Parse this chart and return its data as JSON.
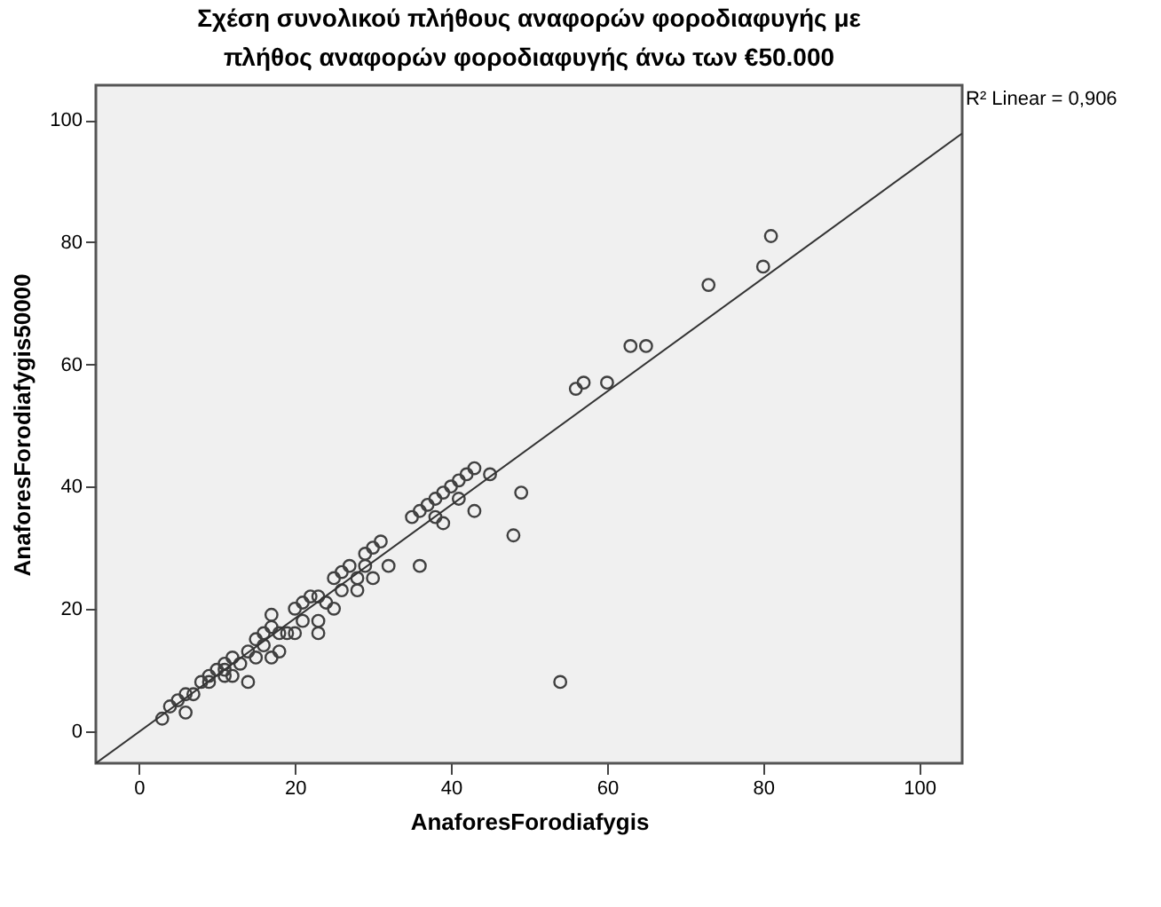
{
  "chart_data": {
    "type": "scatter",
    "title": [
      "Σχέση συνολικού πλήθους αναφορών φοροδιαφυγής με",
      "πλήθος αναφορών φοροδιαφυγής άνω των €50.000"
    ],
    "xlabel": "AnaforesForodiafygis",
    "ylabel": "AnaforesForodiafygis50000",
    "xlim": [
      -5.5,
      105.5
    ],
    "ylim": [
      -5.3,
      105.7
    ],
    "xticks": [
      0,
      20,
      40,
      60,
      80,
      100
    ],
    "yticks": [
      0,
      20,
      40,
      60,
      80,
      100
    ],
    "grid": false,
    "marker": "circle",
    "series": [
      {
        "color": "#404040",
        "x": [
          3,
          4,
          5,
          6,
          6,
          7,
          8,
          9,
          10,
          9,
          11,
          11,
          12,
          11,
          12,
          13,
          14,
          14,
          15,
          15,
          16,
          16,
          17,
          17,
          17,
          18,
          18,
          19,
          20,
          20,
          21,
          21,
          22,
          23,
          23,
          23,
          24,
          25,
          25,
          26,
          26,
          27,
          28,
          28,
          29,
          29,
          30,
          30,
          31,
          32,
          35,
          36,
          37,
          38,
          39,
          40,
          41,
          42,
          43,
          45,
          41,
          38,
          39,
          43,
          49,
          48,
          36,
          54,
          56,
          57,
          60,
          63,
          65,
          73,
          80,
          81
        ],
        "values": [
          2,
          4,
          5,
          6,
          3,
          6,
          8,
          9,
          10,
          8,
          11,
          10,
          9,
          9,
          12,
          11,
          8,
          13,
          15,
          12,
          16,
          14,
          19,
          12,
          17,
          13,
          16,
          16,
          16,
          20,
          21,
          18,
          22,
          22,
          18,
          16,
          21,
          25,
          20,
          23,
          26,
          27,
          23,
          25,
          29,
          27,
          30,
          25,
          31,
          27,
          35,
          36,
          37,
          38,
          39,
          40,
          41,
          42,
          43,
          42,
          38,
          35,
          34,
          36,
          39,
          32,
          27,
          8,
          56,
          57,
          57,
          63,
          63,
          73,
          76,
          81
        ]
      },
      {
        "type": "line",
        "marker": "none",
        "color": "#333333",
        "x": [
          -5.5,
          105.5
        ],
        "values": [
          -5.3,
          97.8
        ]
      }
    ],
    "annotations": [
      "R² Linear = 0,906"
    ]
  }
}
